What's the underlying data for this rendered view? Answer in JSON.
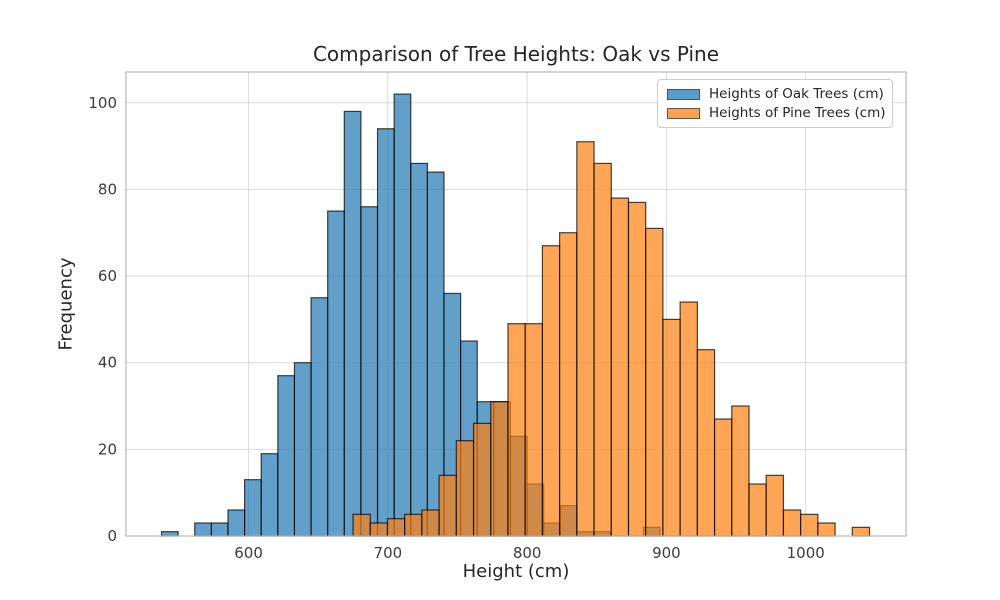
{
  "chart_data": {
    "type": "histogram",
    "title": "Comparison of Tree Heights: Oak vs Pine",
    "xlabel": "Height (cm)",
    "ylabel": "Frequency",
    "xlim": [
      512,
      1072
    ],
    "ylim": [
      0,
      107.1
    ],
    "x_ticks": [
      600,
      700,
      800,
      900,
      1000
    ],
    "y_ticks": [
      0,
      20,
      40,
      60,
      80,
      100
    ],
    "grid": true,
    "legend_position": "upper right",
    "style": {
      "alpha": 0.7,
      "background_color": "#ffffff",
      "grid_color": "#d9d9d9",
      "spine_color": "#b7b7b7",
      "tick_color": "#3c3c3c",
      "text_color": "#262626",
      "bar_edge_color": "#000000",
      "overlap_observed_color": "#cd8749"
    },
    "series": [
      {
        "name": "Heights of Oak Trees (cm)",
        "color": "#1f77b4",
        "bin_start": 537.5,
        "bin_width": 11.93,
        "counts": [
          1,
          0,
          3,
          3,
          6,
          13,
          19,
          37,
          40,
          55,
          75,
          98,
          76,
          94,
          102,
          86,
          84,
          56,
          45,
          31,
          31,
          23,
          12,
          3,
          7,
          1,
          1,
          0,
          0,
          2
        ]
      },
      {
        "name": "Heights of Pine Trees (cm)",
        "color": "#ff7f0e",
        "bin_start": 675.0,
        "bin_width": 12.36,
        "counts": [
          5,
          3,
          4,
          5,
          6,
          14,
          22,
          26,
          31,
          49,
          49,
          67,
          70,
          91,
          86,
          78,
          77,
          71,
          50,
          54,
          43,
          27,
          30,
          12,
          14,
          6,
          5,
          3,
          0,
          2
        ]
      }
    ]
  }
}
